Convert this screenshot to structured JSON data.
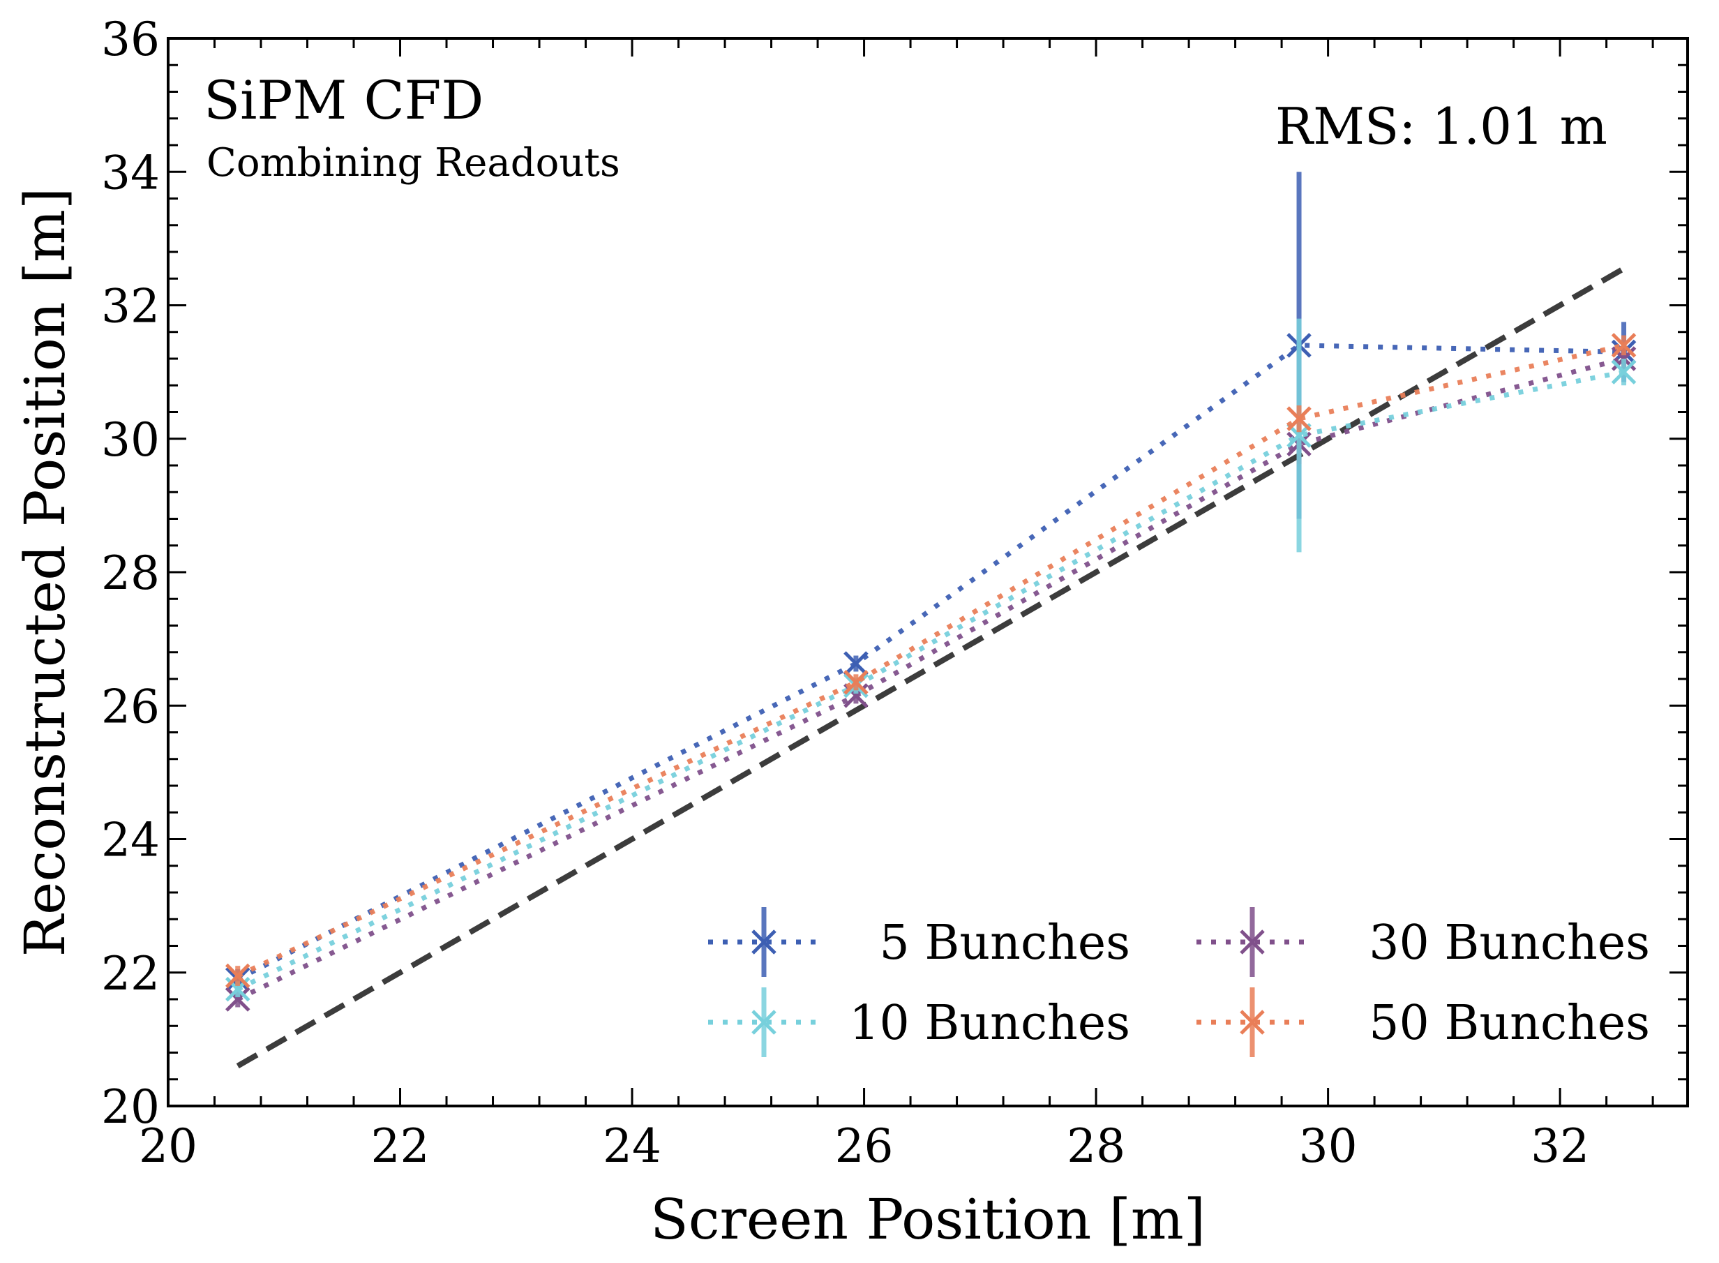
{
  "chart_data": {
    "type": "line",
    "title": "SiPM CFD",
    "subtitle": "Combining Readouts",
    "annotation": "RMS: 1.01 m",
    "xlabel": "Screen Position [m]",
    "ylabel": "Reconstructed Position [m]",
    "xlim": [
      20,
      33.1
    ],
    "ylim": [
      20,
      36
    ],
    "xticks": [
      20,
      22,
      24,
      26,
      28,
      30,
      32
    ],
    "yticks": [
      20,
      22,
      24,
      26,
      28,
      30,
      32,
      34,
      36
    ],
    "x": [
      20.6,
      25.93,
      29.75,
      32.55
    ],
    "reference_line": {
      "style": "dashed",
      "color": "#3c3c3c",
      "x": [
        20.6,
        32.55
      ],
      "y": [
        20.6,
        32.55
      ]
    },
    "legend_location": "lower-right",
    "series": [
      {
        "name": "5 Bunches",
        "color": "#3d5fb3",
        "values": [
          21.9,
          26.63,
          31.4,
          31.3
        ],
        "errors": [
          0.15,
          0.12,
          2.6,
          0.45
        ]
      },
      {
        "name": "30 Bunches",
        "color": "#80508b",
        "values": [
          21.6,
          26.15,
          29.92,
          31.2
        ],
        "errors": [
          0.12,
          0.12,
          0.3,
          0.25
        ]
      },
      {
        "name": "10 Bunches",
        "color": "#77d0dc",
        "values": [
          21.75,
          26.3,
          30.05,
          31.0
        ],
        "errors": [
          0.12,
          0.12,
          1.75,
          0.2
        ]
      },
      {
        "name": "50 Bunches",
        "color": "#e97e58",
        "values": [
          21.95,
          26.35,
          30.3,
          31.4
        ],
        "errors": [
          0.15,
          0.12,
          0.2,
          0.15
        ]
      }
    ]
  }
}
